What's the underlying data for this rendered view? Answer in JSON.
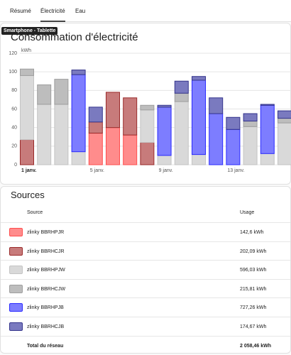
{
  "tabs": [
    "Résumé",
    "Électricité",
    "Eau"
  ],
  "tooltip": "Smartphone - Tablette",
  "chart_data": {
    "type": "stacked-bar",
    "title": "Consommation d'électricité",
    "y_unit": "kWh",
    "categories": [
      "1 janv.",
      null,
      null,
      null,
      "5 janv.",
      null,
      null,
      null,
      "9 janv.",
      null,
      null,
      null,
      "13 janv.",
      null,
      null,
      null
    ],
    "series": [
      {
        "name": "zlinky BBRHPJR",
        "color": "#ff8c8c",
        "border": "#ff4d4d",
        "values": [
          0,
          0,
          0,
          0,
          34,
          40,
          32,
          0,
          0,
          0,
          0,
          0,
          0,
          0,
          0,
          0
        ]
      },
      {
        "name": "zlinky BBRHCJR",
        "color": "#c77b7b",
        "border": "#9a2a2a",
        "values": [
          27,
          0,
          0,
          0,
          12,
          38,
          40,
          24,
          0,
          0,
          0,
          0,
          0,
          0,
          0,
          0
        ]
      },
      {
        "name": "zlinky BBRHPJW",
        "color": "#d9d9d9",
        "border": "#c4c4c4",
        "values": [
          69,
          65,
          65,
          14,
          0,
          0,
          0,
          35,
          10,
          68,
          11,
          0,
          0,
          41,
          12,
          45
        ]
      },
      {
        "name": "zlinky BBRHCJW",
        "color": "#bdbdbd",
        "border": "#9e9e9e",
        "values": [
          7,
          21,
          27,
          0,
          0,
          0,
          0,
          5,
          0,
          9,
          0,
          0,
          0,
          6,
          0,
          5
        ]
      },
      {
        "name": "zlinky BBRHPJB",
        "color": "#7d7dff",
        "border": "#2a2aff",
        "values": [
          0,
          0,
          0,
          83,
          0,
          0,
          0,
          0,
          52,
          0,
          80,
          55,
          38,
          0,
          52,
          0
        ]
      },
      {
        "name": "zlinky BBRHCJB",
        "color": "#7a7abf",
        "border": "#34348c",
        "values": [
          0,
          0,
          0,
          5,
          16,
          0,
          0,
          0,
          2,
          13,
          4,
          17,
          13,
          8,
          1,
          8
        ]
      }
    ],
    "ylim": [
      0,
      120
    ],
    "yticks": [
      0,
      20,
      40,
      60,
      80,
      100,
      120
    ],
    "grid": true
  },
  "sources": {
    "title": "Sources",
    "header": [
      "Source",
      "Usage"
    ],
    "usage": [
      "142,6 kWh",
      "202,09 kWh",
      "596,03 kWh",
      "215,81 kWh",
      "727,26 kWh",
      "174,67 kWh"
    ],
    "total": [
      "Total du réseau",
      "2 058,46 kWh"
    ]
  }
}
